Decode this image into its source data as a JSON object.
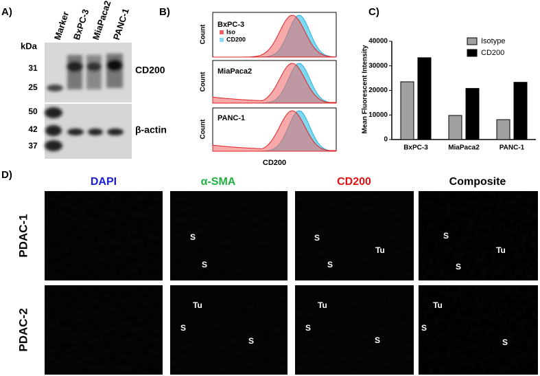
{
  "panel_labels": [
    "A)",
    "B)",
    "C)",
    "D)"
  ],
  "panel_a": {
    "unit": "kDa",
    "lanes": [
      "Marker",
      "BxPC-3",
      "MiaPaca2",
      "PANC-1"
    ],
    "markers": [
      "31",
      "25",
      "50",
      "42",
      "37"
    ],
    "proteins": [
      "CD200",
      "β-actin"
    ]
  },
  "panel_b": {
    "y_label": "Count",
    "x_label": "CD200",
    "cells": [
      "BxPC-3",
      "MiaPaca2",
      "PANC-1"
    ],
    "legend": [
      "Iso",
      "CD200"
    ]
  },
  "chart_data": {
    "type": "bar",
    "ylabel": "Mean Fluorescent Intensity",
    "categories": [
      "BxPC-3",
      "MiaPaca2",
      "PANC-1"
    ],
    "series": [
      {
        "name": "Isotype",
        "color": "#a0a0a0",
        "values": [
          23500,
          9800,
          8100
        ]
      },
      {
        "name": "CD200",
        "color": "#000000",
        "values": [
          33300,
          20800,
          23300
        ]
      }
    ],
    "ylim": [
      0,
      40000
    ],
    "yticks": [
      0,
      10000,
      20000,
      30000,
      40000
    ],
    "legend": "upper right"
  },
  "panel_d": {
    "columns": [
      "DAPI",
      "α-SMA",
      "CD200",
      "Composite"
    ],
    "rows": [
      "PDAC-1",
      "PDAC-2"
    ],
    "annotations": [
      "S",
      "Tu"
    ]
  }
}
